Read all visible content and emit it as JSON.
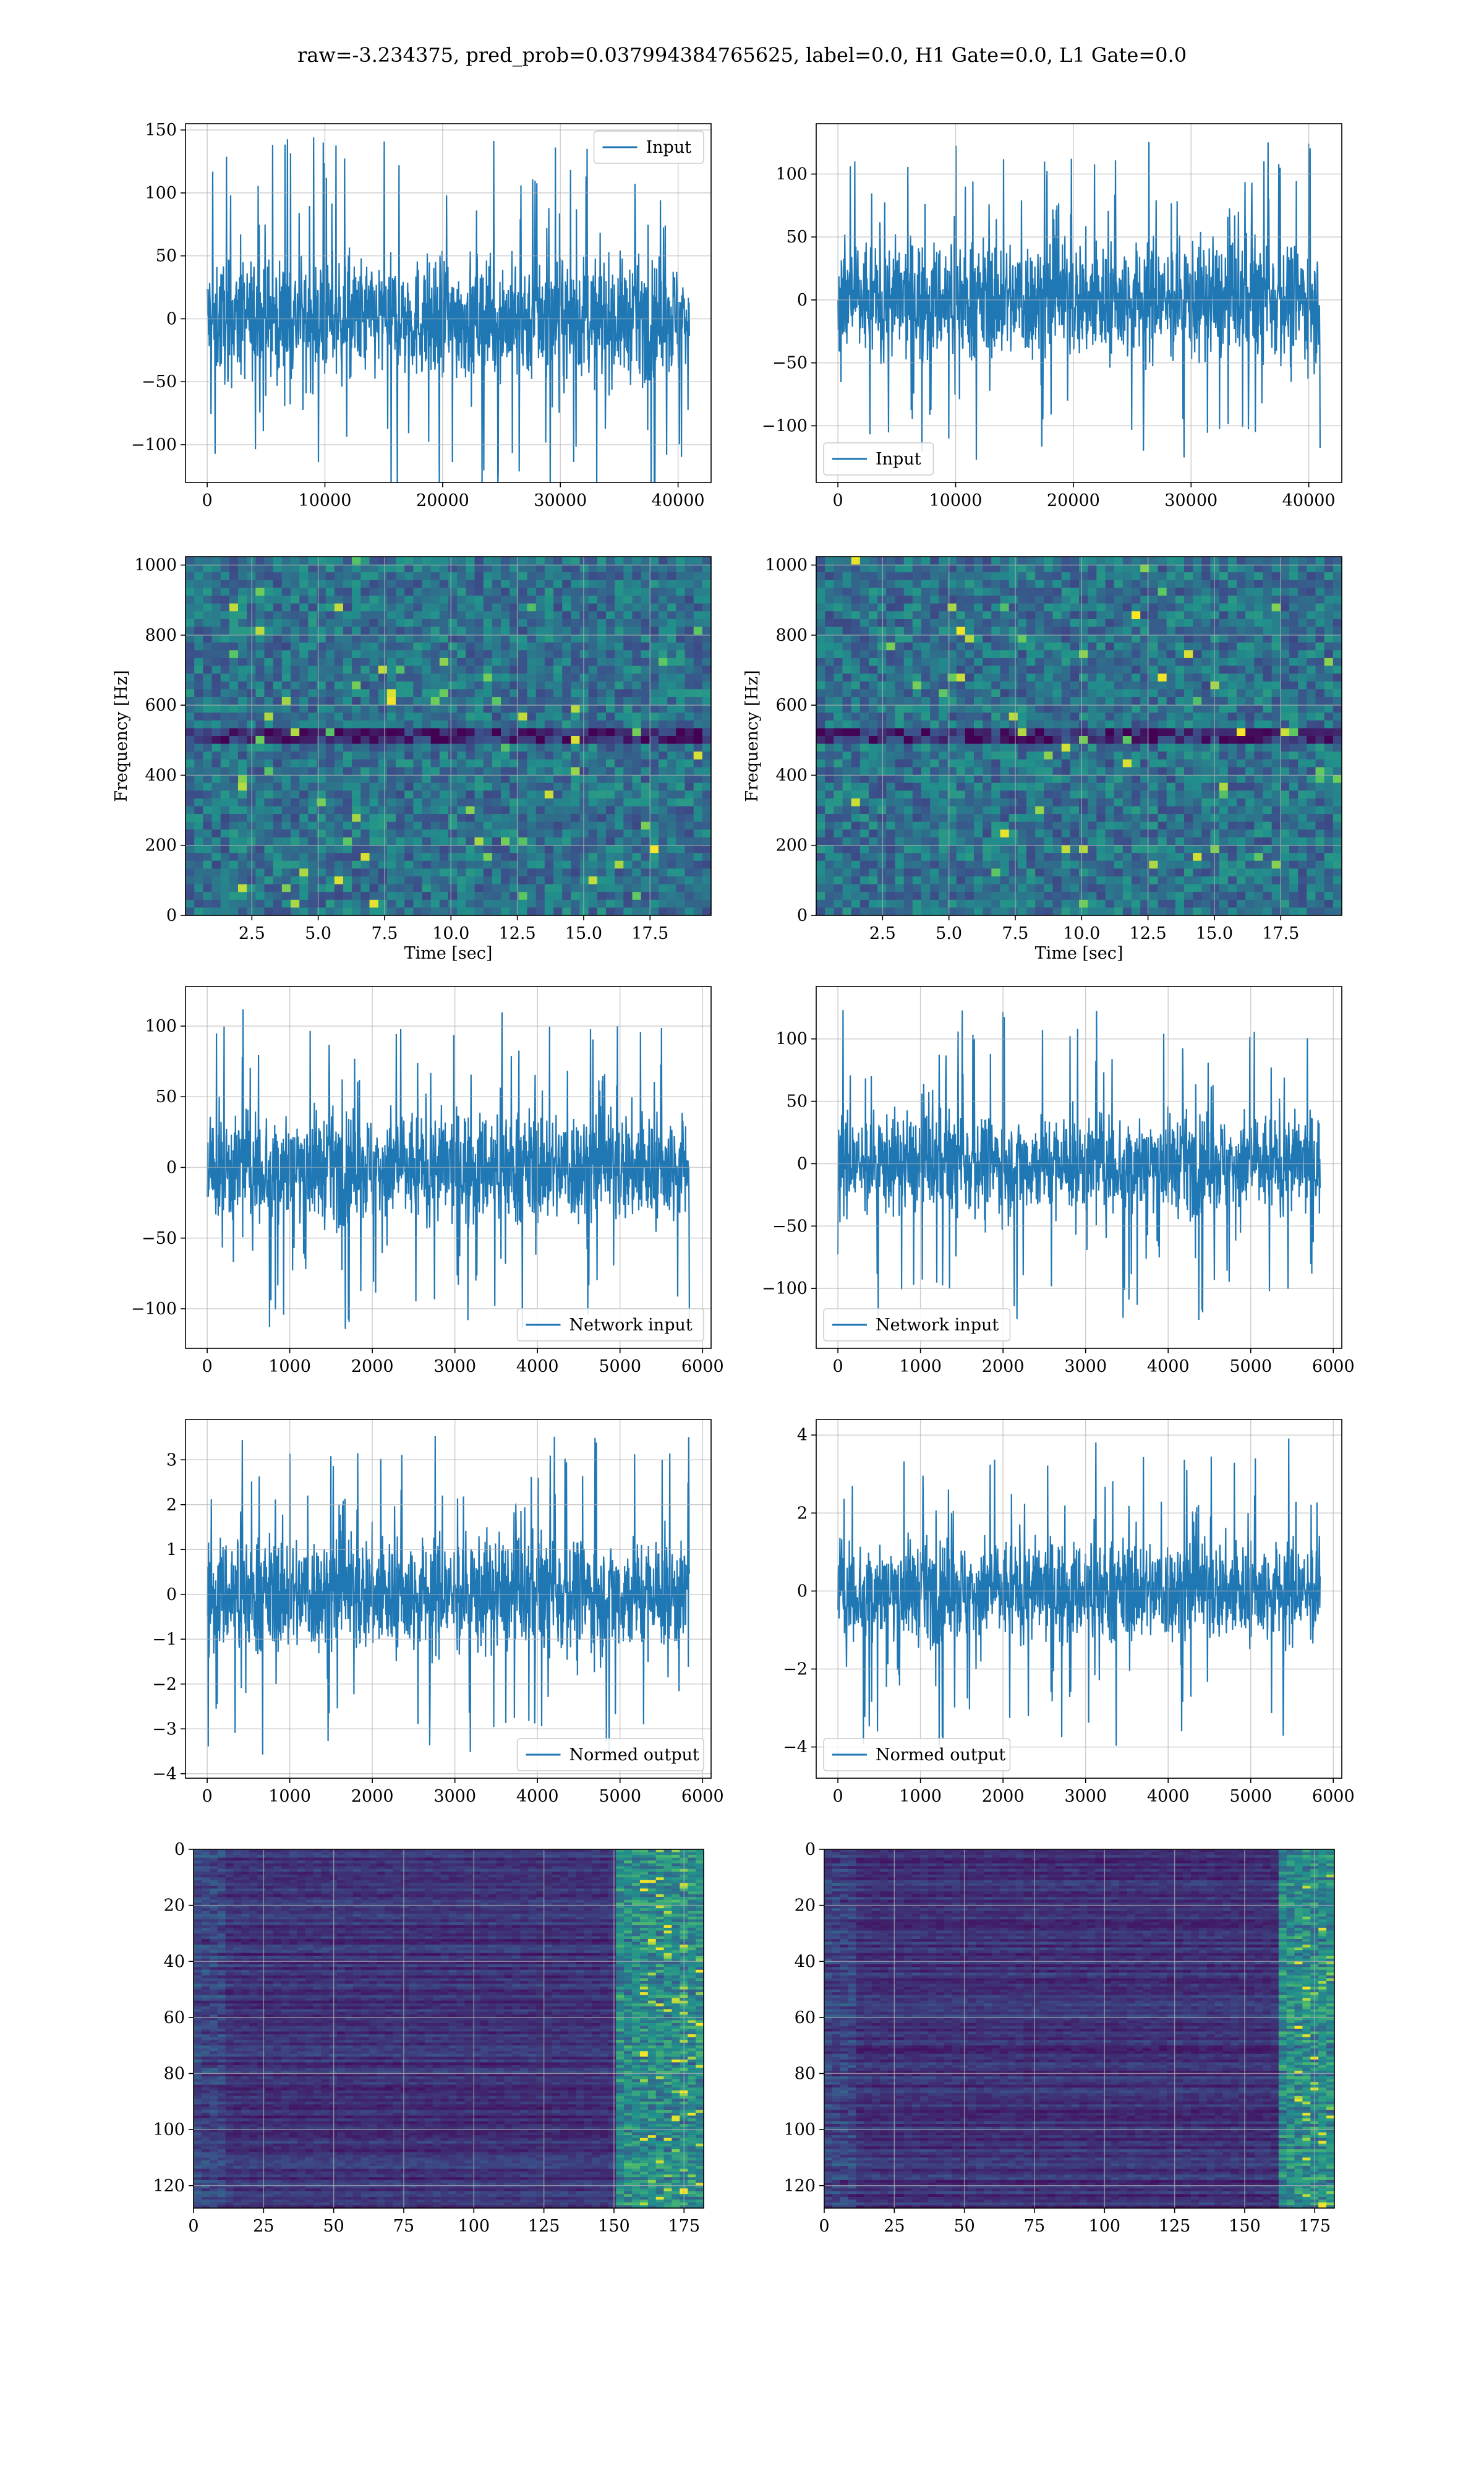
{
  "figure": {
    "title": "raw=-3.234375, pred_prob=0.037994384765625, label=0.0, H1 Gate=0.0, L1 Gate=0.0"
  },
  "colors": {
    "line": "#1f77b4",
    "grid": "#b0b0b0",
    "viridis": [
      "#440154",
      "#3b528b",
      "#21918c",
      "#5ec962",
      "#fde725"
    ]
  },
  "chart_data": [
    {
      "type": "line",
      "id": "h1-input",
      "x_range": [
        0,
        40960
      ],
      "ylim": [
        -130,
        155
      ],
      "xticks": [
        0,
        10000,
        20000,
        30000,
        40000
      ],
      "yticks": [
        -100,
        -50,
        0,
        50,
        100,
        150
      ],
      "legend": "Input",
      "legend_loc": "upper right",
      "series": [
        {
          "name": "Input",
          "envelope_typical": 65,
          "envelope_peak": 145
        }
      ]
    },
    {
      "type": "line",
      "id": "l1-input",
      "x_range": [
        0,
        40960
      ],
      "ylim": [
        -145,
        140
      ],
      "xticks": [
        0,
        10000,
        20000,
        30000,
        40000
      ],
      "yticks": [
        -100,
        -50,
        0,
        50,
        100
      ],
      "legend": "Input",
      "legend_loc": "lower left",
      "series": [
        {
          "name": "Input",
          "envelope_typical": 65,
          "envelope_peak": 128
        }
      ]
    },
    {
      "type": "heatmap",
      "id": "h1-spectrogram",
      "xlabel": "Time [sec]",
      "ylabel": "Frequency [Hz]",
      "xlim": [
        0,
        19.8
      ],
      "ylim": [
        0,
        1024
      ],
      "xticks": [
        2.5,
        5.0,
        7.5,
        10.0,
        12.5,
        15.0,
        17.5
      ],
      "yticks": [
        0,
        200,
        400,
        600,
        800,
        1000
      ]
    },
    {
      "type": "heatmap",
      "id": "l1-spectrogram",
      "xlabel": "Time [sec]",
      "ylabel": "Frequency [Hz]",
      "xlim": [
        0,
        19.8
      ],
      "ylim": [
        0,
        1024
      ],
      "xticks": [
        2.5,
        5.0,
        7.5,
        10.0,
        12.5,
        15.0,
        17.5
      ],
      "yticks": [
        0,
        200,
        400,
        600,
        800,
        1000
      ]
    },
    {
      "type": "line",
      "id": "h1-network-input",
      "x_range": [
        0,
        5840
      ],
      "ylim": [
        -128,
        128
      ],
      "xticks": [
        0,
        1000,
        2000,
        3000,
        4000,
        5000,
        6000
      ],
      "yticks": [
        -100,
        -50,
        0,
        50,
        100
      ],
      "legend": "Network input",
      "legend_loc": "lower right",
      "series": [
        {
          "name": "Network input",
          "envelope_typical": 55,
          "envelope_peak": 115
        }
      ]
    },
    {
      "type": "line",
      "id": "l1-network-input",
      "x_range": [
        0,
        5840
      ],
      "ylim": [
        -148,
        142
      ],
      "xticks": [
        0,
        1000,
        2000,
        3000,
        4000,
        5000,
        6000
      ],
      "yticks": [
        -100,
        -50,
        0,
        50,
        100
      ],
      "legend": "Network input",
      "legend_loc": "lower left",
      "series": [
        {
          "name": "Network input",
          "envelope_typical": 55,
          "envelope_peak": 126
        }
      ]
    },
    {
      "type": "line",
      "id": "h1-normed-output",
      "x_range": [
        0,
        5840
      ],
      "ylim": [
        -4.1,
        3.9
      ],
      "xticks": [
        0,
        1000,
        2000,
        3000,
        4000,
        5000,
        6000
      ],
      "yticks": [
        -4,
        -3,
        -2,
        -1,
        0,
        1,
        2,
        3
      ],
      "legend": "Normed output",
      "legend_loc": "lower right",
      "series": [
        {
          "name": "Normed output",
          "envelope_typical": 1.8,
          "envelope_peak": 3.6
        }
      ]
    },
    {
      "type": "line",
      "id": "l1-normed-output",
      "x_range": [
        0,
        5840
      ],
      "ylim": [
        -4.8,
        4.4
      ],
      "xticks": [
        0,
        1000,
        2000,
        3000,
        4000,
        5000,
        6000
      ],
      "yticks": [
        -4,
        -2,
        0,
        2,
        4
      ],
      "legend": "Normed output",
      "legend_loc": "lower left",
      "series": [
        {
          "name": "Normed output",
          "envelope_typical": 1.8,
          "envelope_peak": 4.0
        }
      ]
    },
    {
      "type": "heatmap",
      "id": "h1-feature-map",
      "xlim": [
        0,
        182
      ],
      "ylim": [
        128,
        0
      ],
      "xticks": [
        0,
        25,
        50,
        75,
        100,
        125,
        150,
        175
      ],
      "yticks": [
        0,
        20,
        40,
        60,
        80,
        100,
        120
      ],
      "rows": 128,
      "cols": 182,
      "bright_cols": [
        150,
        175
      ]
    },
    {
      "type": "heatmap",
      "id": "l1-feature-map",
      "xlim": [
        0,
        182
      ],
      "ylim": [
        128,
        0
      ],
      "xticks": [
        0,
        25,
        50,
        75,
        100,
        125,
        150,
        175
      ],
      "yticks": [
        0,
        20,
        40,
        60,
        80,
        100,
        120
      ],
      "rows": 128,
      "cols": 182,
      "bright_cols": [
        160,
        182
      ]
    }
  ]
}
